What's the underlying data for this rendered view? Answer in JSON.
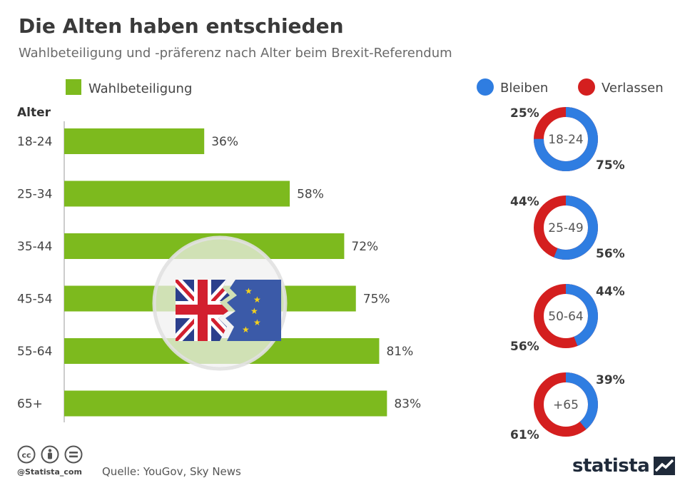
{
  "title": "Die Alten haben entschieden",
  "subtitle": "Wahlbeteiligung und -präferenz nach Alter beim Brexit-Referendum",
  "colors": {
    "turnout": "#7dba1e",
    "remain": "#2f7de1",
    "leave": "#d41f1f"
  },
  "chart_data": [
    {
      "type": "bar",
      "orientation": "horizontal",
      "axis_title": "Alter",
      "legend": [
        "Wahlbeteiligung"
      ],
      "categories": [
        "18-24",
        "25-34",
        "35-44",
        "45-54",
        "55-64",
        "65+"
      ],
      "values": [
        36,
        58,
        72,
        75,
        81,
        83
      ],
      "value_labels": [
        "36%",
        "58%",
        "72%",
        "75%",
        "81%",
        "83%"
      ],
      "xlim": [
        0,
        100
      ],
      "unit": "%"
    },
    {
      "type": "pie",
      "style": "donut",
      "legend": [
        "Bleiben",
        "Verlassen"
      ],
      "legend_position": "top-right",
      "groups": [
        {
          "label": "18-24",
          "remain": 75,
          "leave": 25,
          "remain_label": "75%",
          "leave_label": "25%"
        },
        {
          "label": "25-49",
          "remain": 56,
          "leave": 44,
          "remain_label": "56%",
          "leave_label": "44%"
        },
        {
          "label": "50-64",
          "remain": 44,
          "leave": 56,
          "remain_label": "44%",
          "leave_label": "56%"
        },
        {
          "label": "+65",
          "remain": 39,
          "leave": 61,
          "remain_label": "39%",
          "leave_label": "61%"
        }
      ]
    }
  ],
  "footer": {
    "handle": "@Statista_com",
    "source": "Quelle: YouGov, Sky News",
    "logo": "statista"
  },
  "icons": {
    "cc": "cc-license-icon",
    "by": "attribution-icon",
    "nd": "no-derivatives-icon",
    "logo_mark": "statista-logo-icon",
    "illustration": "brexit-flag-icon"
  }
}
